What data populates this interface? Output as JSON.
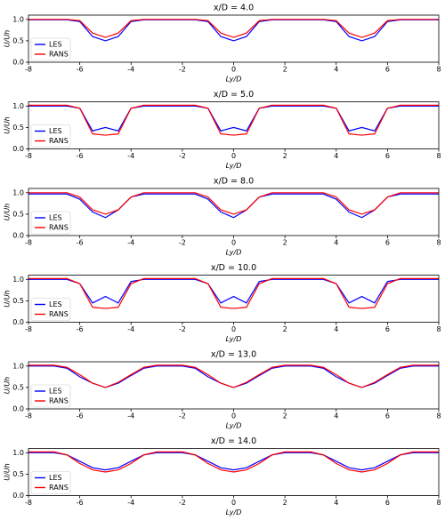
{
  "chart_data": [
    {
      "type": "line",
      "title": "x/D = 4.0",
      "xlabel": "Ly/D",
      "ylabel": "U/Uh",
      "x": [
        -8,
        -7.5,
        -7,
        -6.5,
        -6,
        -5.5,
        -5,
        -4.5,
        -4,
        -3.5,
        -3,
        -2.5,
        -2,
        -1.5,
        -1,
        -0.5,
        0,
        0.5,
        1,
        1.5,
        2,
        2.5,
        3,
        3.5,
        4,
        4.5,
        5,
        5.5,
        6,
        6.5,
        7,
        7.5,
        8
      ],
      "series": [
        {
          "name": "LES",
          "color": "#0000ff",
          "values": [
            0.99,
            0.99,
            0.99,
            0.99,
            0.95,
            0.6,
            0.5,
            0.6,
            0.95,
            0.99,
            0.99,
            0.99,
            0.99,
            0.99,
            0.95,
            0.6,
            0.5,
            0.6,
            0.95,
            0.99,
            0.99,
            0.99,
            0.99,
            0.99,
            0.95,
            0.6,
            0.5,
            0.6,
            0.95,
            0.99,
            0.99,
            0.99,
            0.99
          ]
        },
        {
          "name": "RANS",
          "color": "#ff0000",
          "values": [
            1.0,
            1.0,
            1.0,
            1.0,
            0.97,
            0.68,
            0.58,
            0.68,
            0.97,
            1.0,
            1.0,
            1.0,
            1.0,
            1.0,
            0.97,
            0.68,
            0.58,
            0.68,
            0.97,
            1.0,
            1.0,
            1.0,
            1.0,
            1.0,
            0.97,
            0.68,
            0.58,
            0.68,
            0.97,
            1.0,
            1.0,
            1.0,
            1.0
          ]
        }
      ],
      "xlim": [
        -8,
        8
      ],
      "ylim": [
        0,
        1.1
      ],
      "xticks": [
        -8,
        -6,
        -4,
        -2,
        0,
        2,
        4,
        6,
        8
      ],
      "yticks": [
        {
          "value": 0,
          "label": "0.0"
        },
        {
          "value": 0.5,
          "label": "0.5"
        },
        {
          "value": 1,
          "label": "1.0"
        }
      ],
      "legend": "lower left"
    },
    {
      "type": "line",
      "title": "x/D = 5.0",
      "xlabel": "Ly/D",
      "ylabel": "U/Uh",
      "x": [
        -8,
        -7.5,
        -7,
        -6.5,
        -6,
        -5.5,
        -5,
        -4.5,
        -4,
        -3.5,
        -3,
        -2.5,
        -2,
        -1.5,
        -1,
        -0.5,
        0,
        0.5,
        1,
        1.5,
        2,
        2.5,
        3,
        3.5,
        4,
        4.5,
        5,
        5.5,
        6,
        6.5,
        7,
        7.5,
        8
      ],
      "series": [
        {
          "name": "LES",
          "color": "#0000ff",
          "values": [
            1.0,
            1.0,
            1.0,
            1.0,
            0.95,
            0.42,
            0.5,
            0.42,
            0.95,
            1.0,
            1.0,
            1.0,
            1.0,
            1.0,
            0.95,
            0.42,
            0.5,
            0.42,
            0.95,
            1.0,
            1.0,
            1.0,
            1.0,
            1.0,
            0.95,
            0.42,
            0.5,
            0.42,
            0.95,
            1.0,
            1.0,
            1.0,
            1.0
          ]
        },
        {
          "name": "RANS",
          "color": "#ff0000",
          "values": [
            1.02,
            1.02,
            1.02,
            1.02,
            0.95,
            0.35,
            0.32,
            0.35,
            0.95,
            1.02,
            1.02,
            1.02,
            1.02,
            1.02,
            0.95,
            0.35,
            0.32,
            0.35,
            0.95,
            1.02,
            1.02,
            1.02,
            1.02,
            1.02,
            0.95,
            0.35,
            0.32,
            0.35,
            0.95,
            1.02,
            1.02,
            1.02,
            1.02
          ]
        }
      ],
      "xlim": [
        -8,
        8
      ],
      "ylim": [
        0,
        1.1
      ],
      "xticks": [
        -8,
        -6,
        -4,
        -2,
        0,
        2,
        4,
        6,
        8
      ],
      "yticks": [
        {
          "value": 0,
          "label": "0.0"
        },
        {
          "value": 0.5,
          "label": "0.5"
        },
        {
          "value": 1,
          "label": "1.0"
        }
      ],
      "legend": "lower left"
    },
    {
      "type": "line",
      "title": "x/D = 8.0",
      "xlabel": "Ly/D",
      "ylabel": "U/Uh",
      "x": [
        -8,
        -7.5,
        -7,
        -6.5,
        -6,
        -5.5,
        -5,
        -4.5,
        -4,
        -3.5,
        -3,
        -2.5,
        -2,
        -1.5,
        -1,
        -0.5,
        0,
        0.5,
        1,
        1.5,
        2,
        2.5,
        3,
        3.5,
        4,
        4.5,
        5,
        5.5,
        6,
        6.5,
        7,
        7.5,
        8
      ],
      "series": [
        {
          "name": "LES",
          "color": "#0000ff",
          "values": [
            0.97,
            0.97,
            0.97,
            0.97,
            0.85,
            0.55,
            0.42,
            0.6,
            0.9,
            0.97,
            0.97,
            0.97,
            0.97,
            0.97,
            0.85,
            0.55,
            0.42,
            0.6,
            0.9,
            0.97,
            0.97,
            0.97,
            0.97,
            0.97,
            0.85,
            0.55,
            0.42,
            0.6,
            0.9,
            0.97,
            0.97,
            0.97,
            0.97
          ]
        },
        {
          "name": "RANS",
          "color": "#ff0000",
          "values": [
            1.0,
            1.0,
            1.0,
            1.0,
            0.9,
            0.6,
            0.5,
            0.6,
            0.9,
            1.0,
            1.0,
            1.0,
            1.0,
            1.0,
            0.9,
            0.6,
            0.5,
            0.6,
            0.9,
            1.0,
            1.0,
            1.0,
            1.0,
            1.0,
            0.9,
            0.6,
            0.5,
            0.6,
            0.9,
            1.0,
            1.0,
            1.0,
            1.0
          ]
        }
      ],
      "xlim": [
        -8,
        8
      ],
      "ylim": [
        0,
        1.1
      ],
      "xticks": [
        -8,
        -6,
        -4,
        -2,
        0,
        2,
        4,
        6,
        8
      ],
      "yticks": [
        {
          "value": 0,
          "label": "0.0"
        },
        {
          "value": 0.5,
          "label": "0.5"
        },
        {
          "value": 1,
          "label": "1.0"
        }
      ],
      "legend": "lower left"
    },
    {
      "type": "line",
      "title": "x/D = 10.0",
      "xlabel": "Ly/D",
      "ylabel": "U/Uh",
      "x": [
        -8,
        -7.5,
        -7,
        -6.5,
        -6,
        -5.5,
        -5,
        -4.5,
        -4,
        -3.5,
        -3,
        -2.5,
        -2,
        -1.5,
        -1,
        -0.5,
        0,
        0.5,
        1,
        1.5,
        2,
        2.5,
        3,
        3.5,
        4,
        4.5,
        5,
        5.5,
        6,
        6.5,
        7,
        7.5,
        8
      ],
      "series": [
        {
          "name": "LES",
          "color": "#0000ff",
          "values": [
            1.0,
            1.0,
            1.0,
            1.0,
            0.9,
            0.45,
            0.6,
            0.45,
            0.95,
            1.0,
            1.0,
            1.0,
            1.0,
            1.0,
            0.9,
            0.45,
            0.6,
            0.45,
            0.95,
            1.0,
            1.0,
            1.0,
            1.0,
            1.0,
            0.9,
            0.45,
            0.6,
            0.45,
            0.95,
            1.0,
            1.0,
            1.0,
            1.0
          ]
        },
        {
          "name": "RANS",
          "color": "#ff0000",
          "values": [
            1.02,
            1.02,
            1.02,
            1.02,
            0.9,
            0.35,
            0.32,
            0.35,
            0.9,
            1.02,
            1.02,
            1.02,
            1.02,
            1.02,
            0.9,
            0.35,
            0.32,
            0.35,
            0.9,
            1.02,
            1.02,
            1.02,
            1.02,
            1.02,
            0.9,
            0.35,
            0.32,
            0.35,
            0.9,
            1.02,
            1.02,
            1.02,
            1.02
          ]
        }
      ],
      "xlim": [
        -8,
        8
      ],
      "ylim": [
        0,
        1.1
      ],
      "xticks": [
        -8,
        -6,
        -4,
        -2,
        0,
        2,
        4,
        6,
        8
      ],
      "yticks": [
        {
          "value": 0,
          "label": "0.0"
        },
        {
          "value": 0.5,
          "label": "0.5"
        },
        {
          "value": 1,
          "label": "1.0"
        }
      ],
      "legend": "lower left"
    },
    {
      "type": "line",
      "title": "x/D = 13.0",
      "xlabel": "Ly/D",
      "ylabel": "U/Uh",
      "x": [
        -8,
        -7.5,
        -7,
        -6.5,
        -6,
        -5.5,
        -5,
        -4.5,
        -4,
        -3.5,
        -3,
        -2.5,
        -2,
        -1.5,
        -1,
        -0.5,
        0,
        0.5,
        1,
        1.5,
        2,
        2.5,
        3,
        3.5,
        4,
        4.5,
        5,
        5.5,
        6,
        6.5,
        7,
        7.5,
        8
      ],
      "series": [
        {
          "name": "LES",
          "color": "#0000ff",
          "values": [
            1.0,
            1.0,
            1.0,
            0.95,
            0.75,
            0.6,
            0.5,
            0.6,
            0.78,
            0.95,
            1.0,
            1.0,
            1.0,
            0.95,
            0.75,
            0.6,
            0.5,
            0.6,
            0.78,
            0.95,
            1.0,
            1.0,
            1.0,
            0.95,
            0.75,
            0.6,
            0.5,
            0.6,
            0.78,
            0.95,
            1.0,
            1.0,
            1.0
          ]
        },
        {
          "name": "RANS",
          "color": "#ff0000",
          "values": [
            1.02,
            1.02,
            1.02,
            0.97,
            0.8,
            0.6,
            0.5,
            0.62,
            0.8,
            0.97,
            1.02,
            1.02,
            1.02,
            0.97,
            0.8,
            0.6,
            0.5,
            0.62,
            0.8,
            0.97,
            1.02,
            1.02,
            1.02,
            0.97,
            0.8,
            0.6,
            0.5,
            0.62,
            0.8,
            0.97,
            1.02,
            1.02,
            1.02
          ]
        }
      ],
      "xlim": [
        -8,
        8
      ],
      "ylim": [
        0,
        1.1
      ],
      "xticks": [
        -8,
        -6,
        -4,
        -2,
        0,
        2,
        4,
        6,
        8
      ],
      "yticks": [
        {
          "value": 0,
          "label": "0.0"
        },
        {
          "value": 0.5,
          "label": "0.5"
        },
        {
          "value": 1,
          "label": "1.0"
        }
      ],
      "legend": "lower left"
    },
    {
      "type": "line",
      "title": "x/D = 14.0",
      "xlabel": "Ly/D",
      "ylabel": "U/Uh",
      "x": [
        -8,
        -7.5,
        -7,
        -6.5,
        -6,
        -5.5,
        -5,
        -4.5,
        -4,
        -3.5,
        -3,
        -2.5,
        -2,
        -1.5,
        -1,
        -0.5,
        0,
        0.5,
        1,
        1.5,
        2,
        2.5,
        3,
        3.5,
        4,
        4.5,
        5,
        5.5,
        6,
        6.5,
        7,
        7.5,
        8
      ],
      "series": [
        {
          "name": "LES",
          "color": "#0000ff",
          "values": [
            1.0,
            1.0,
            1.0,
            0.95,
            0.8,
            0.65,
            0.6,
            0.65,
            0.8,
            0.95,
            1.0,
            1.0,
            1.0,
            0.95,
            0.8,
            0.65,
            0.6,
            0.65,
            0.8,
            0.95,
            1.0,
            1.0,
            1.0,
            0.95,
            0.8,
            0.65,
            0.6,
            0.65,
            0.8,
            0.95,
            1.0,
            1.0,
            1.0
          ]
        },
        {
          "name": "RANS",
          "color": "#ff0000",
          "values": [
            1.02,
            1.02,
            1.02,
            0.95,
            0.75,
            0.6,
            0.55,
            0.6,
            0.75,
            0.95,
            1.02,
            1.02,
            1.02,
            0.95,
            0.75,
            0.6,
            0.55,
            0.6,
            0.75,
            0.95,
            1.02,
            1.02,
            1.02,
            0.95,
            0.75,
            0.6,
            0.55,
            0.6,
            0.75,
            0.95,
            1.02,
            1.02,
            1.02
          ]
        }
      ],
      "xlim": [
        -8,
        8
      ],
      "ylim": [
        0,
        1.1
      ],
      "xticks": [
        -8,
        -6,
        -4,
        -2,
        0,
        2,
        4,
        6,
        8
      ],
      "yticks": [
        {
          "value": 0,
          "label": "0.0"
        },
        {
          "value": 0.5,
          "label": "0.5"
        },
        {
          "value": 1,
          "label": "1.0"
        }
      ],
      "legend": "lower left"
    }
  ]
}
